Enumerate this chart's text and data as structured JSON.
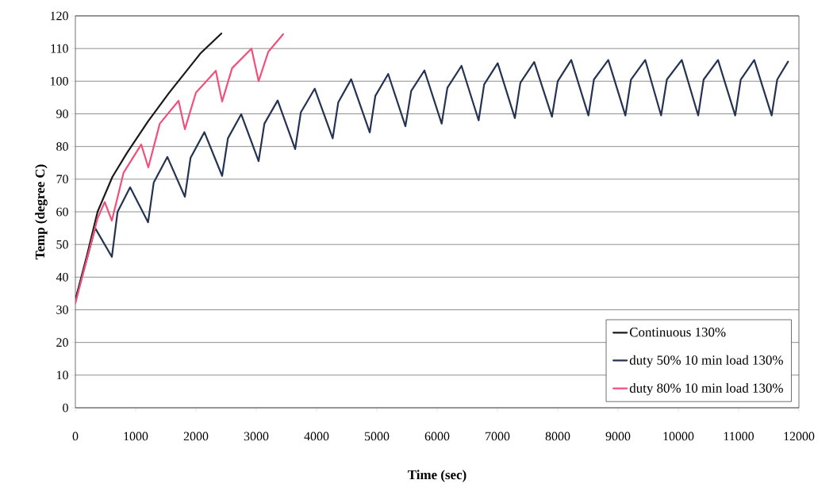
{
  "chart_data": {
    "type": "line",
    "xlabel": "Time (sec)",
    "ylabel": "Temp (degree C)",
    "xlim": [
      0,
      12000
    ],
    "xticks": [
      0,
      1000,
      2000,
      3000,
      4000,
      5000,
      6000,
      7000,
      8000,
      9000,
      10000,
      11000,
      12000
    ],
    "ylim": [
      0,
      120
    ],
    "yticks": [
      0,
      10,
      20,
      30,
      40,
      50,
      60,
      70,
      80,
      90,
      100,
      110,
      120
    ],
    "grid": "y",
    "legend": "bottom right",
    "series": [
      {
        "name": "Continuous 130%",
        "color": "#1a1a1a",
        "x": [
          0,
          197,
          368,
          614,
          855,
          1206,
          1553,
          2079,
          2421
        ],
        "values": [
          33,
          47,
          60,
          70.7,
          78,
          87.7,
          96.4,
          108.6,
          114.6
        ]
      },
      {
        "name": "duty 50% 10 min load 130%",
        "color": "#243352",
        "x": [
          0,
          197,
          329,
          605,
          700,
          908,
          1206,
          1300,
          1526,
          1816,
          1910,
          2140,
          2434,
          2530,
          2750,
          3039,
          3135,
          3355,
          3645,
          3740,
          3970,
          4268,
          4360,
          4574,
          4882,
          4975,
          5188,
          5474,
          5570,
          5789,
          6075,
          6170,
          6404,
          6688,
          6780,
          7004,
          7289,
          7380,
          7610,
          7904,
          8000,
          8224,
          8509,
          8600,
          8838,
          9122,
          9215,
          9451,
          9714,
          9810,
          10057,
          10329,
          10420,
          10658,
          10943,
          11035,
          11259,
          11548,
          11640,
          11820
        ],
        "values": [
          33,
          46,
          55,
          46.2,
          60,
          67.5,
          56.8,
          69,
          76.8,
          64.6,
          76.5,
          84.4,
          71,
          82.5,
          89.9,
          75.5,
          87,
          94.1,
          79.2,
          90.5,
          97.7,
          82.5,
          93.5,
          100.6,
          84.3,
          95.5,
          102.2,
          86.2,
          97,
          103.3,
          87,
          98,
          104.7,
          88,
          99,
          105.5,
          88.7,
          99.5,
          105.9,
          89.1,
          100,
          106.5,
          89.5,
          100.5,
          106.5,
          89.5,
          100.5,
          106.5,
          89.5,
          100.5,
          106.5,
          89.5,
          100.5,
          106.5,
          89.5,
          100.5,
          106.5,
          89.5,
          100.5,
          106
        ]
      },
      {
        "name": "duty 80% 10 min load 130%",
        "color": "#f0507a",
        "x": [
          0,
          197,
          368,
          487,
          605,
          800,
          1092,
          1210,
          1400,
          1711,
          1816,
          2000,
          2329,
          2434,
          2600,
          2921,
          3039,
          3200,
          3447
        ],
        "values": [
          32,
          46,
          58,
          63,
          57.3,
          72,
          80.6,
          73.6,
          87,
          94,
          85.3,
          96.5,
          103.2,
          93.8,
          104,
          110,
          100,
          109,
          114.4
        ]
      }
    ]
  }
}
